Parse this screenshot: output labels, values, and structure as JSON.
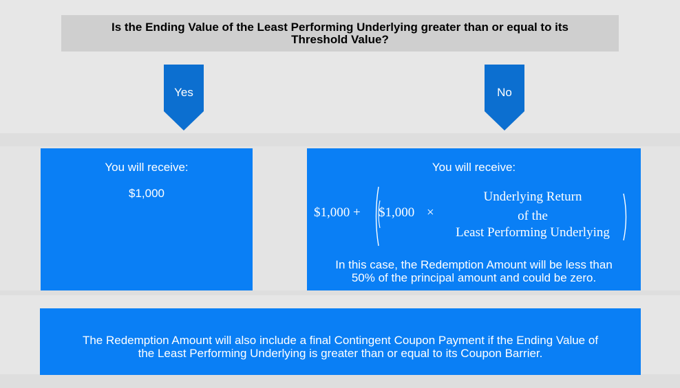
{
  "question": {
    "line1": "Is the Ending Value of the Least Performing Underlying greater than or equal to its",
    "line2": "Threshold Value?"
  },
  "branches": {
    "yes_label": "Yes",
    "no_label": "No"
  },
  "yes_box": {
    "heading": "You will receive:",
    "amount": "$1,000"
  },
  "no_box": {
    "heading": "You will receive:",
    "formula": {
      "base": "$1,000 +",
      "inner_amount": "$1,000",
      "times": "×",
      "fraction_line1": "Underlying Return",
      "fraction_line2": "of the",
      "fraction_line3": "Least Performing Underlying"
    },
    "desc_line1": "In this case, the Redemption Amount will be less than",
    "desc_line2": "50% of the principal amount and could be zero."
  },
  "note": {
    "line1": "The Redemption Amount will also include a final Contingent Coupon Payment if the Ending Value of",
    "line2": "the Least Performing Underlying is greater than or equal to its Coupon Barrier."
  },
  "colors": {
    "accent_blue": "#0a7ff5",
    "arrow_blue": "#0c6fd0",
    "question_bg": "#cfcfcf",
    "page_bg": "#dedede"
  }
}
